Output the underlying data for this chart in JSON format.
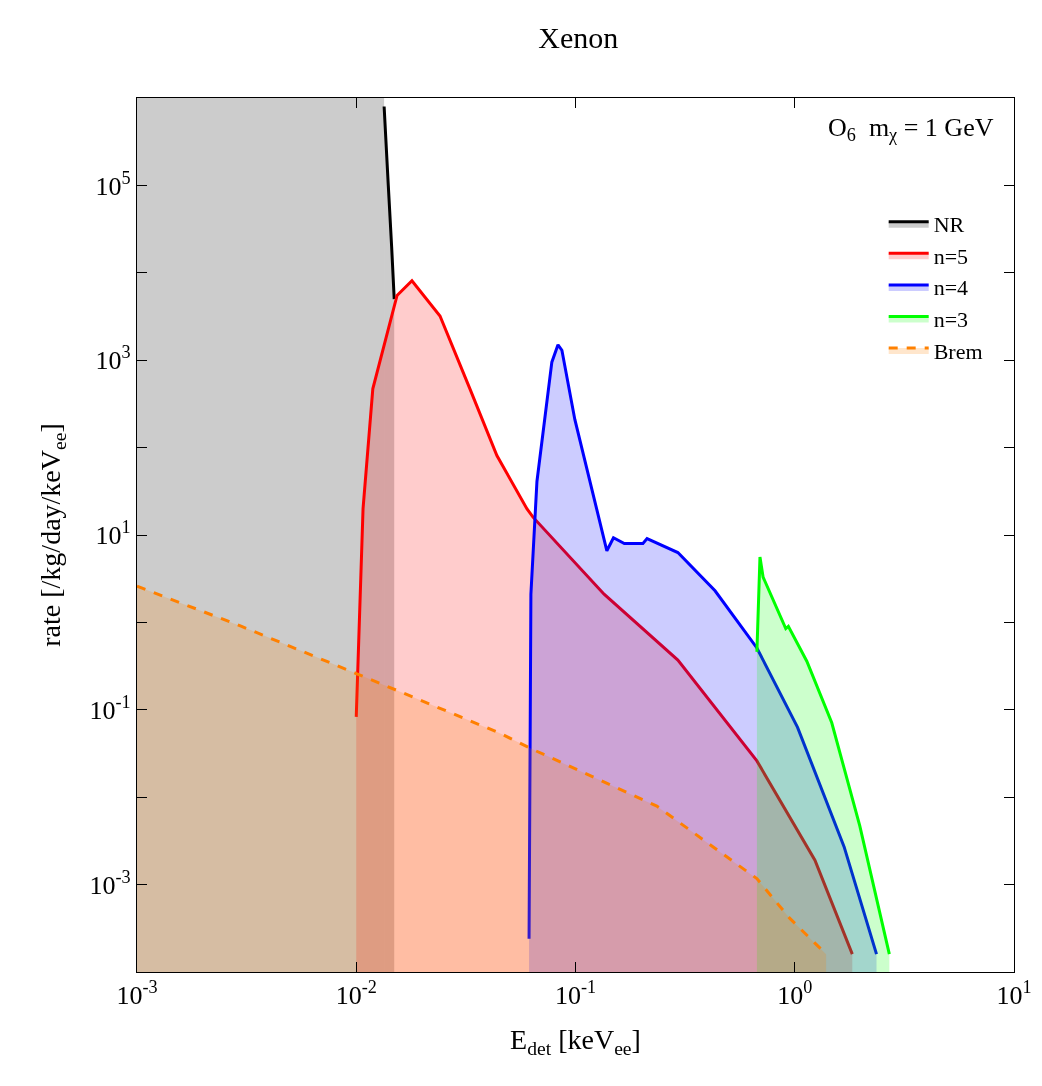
{
  "chart_data": {
    "type": "area",
    "title": "Xenon",
    "xlabel": "E$_{det}$ [keV$_{ee}$]",
    "ylabel": "rate [/kg/day/keV$_{ee}$]",
    "annotations": [
      "O$_{6}$  m$_{χ}$ = 1 GeV"
    ],
    "log": "xy",
    "xlim": [
      0.001,
      10
    ],
    "ylim": [
      0.0001,
      1000000
    ],
    "xticks": [
      {
        "value": 0.001,
        "label": "10$^{-3}$"
      },
      {
        "value": 0.01,
        "label": "10$^{-2}$"
      },
      {
        "value": 0.1,
        "label": "10$^{-1}$"
      },
      {
        "value": 1,
        "label": "10$^{0}$"
      },
      {
        "value": 10,
        "label": "10$^{1}$"
      }
    ],
    "yticks": [
      {
        "value": 0.001,
        "label": "10$^{-3}$"
      },
      {
        "value": 0.01,
        "label": null
      },
      {
        "value": 0.1,
        "label": "10$^{-1}$"
      },
      {
        "value": 1,
        "label": null
      },
      {
        "value": 10,
        "label": "10$^{1}$"
      },
      {
        "value": 100,
        "label": null
      },
      {
        "value": 1000,
        "label": "10$^{3}$"
      },
      {
        "value": 10000,
        "label": null
      },
      {
        "value": 100000,
        "label": "10$^{5}$"
      }
    ],
    "bands": [
      {
        "axis": "x",
        "from": 0.001,
        "to": 0.0134,
        "color": "#cccccc"
      }
    ],
    "grid": false,
    "legend": "top right",
    "line_style": "solid",
    "series": [
      {
        "name": "NR",
        "color": "#000000",
        "x": [
          0.0134,
          0.014,
          0.0145,
          0.0149
        ],
        "values": [
          800000,
          100000,
          20000,
          5000
        ]
      },
      {
        "name": "n=5",
        "color": "#ff0000",
        "x": [
          0.01,
          0.01074,
          0.0119,
          0.01535,
          0.01795,
          0.0241,
          0.033,
          0.0438,
          0.06,
          0.064,
          0.135,
          0.293,
          0.672,
          1.236,
          1.83
        ],
        "values": [
          0.083,
          20,
          470,
          5500,
          8100,
          3200,
          470,
          81,
          20,
          16,
          2.1,
          0.37,
          0.026,
          0.0019,
          0.00016
        ]
      },
      {
        "name": "n=4",
        "color": "#0000ff",
        "x": [
          0.0614,
          0.0626,
          0.0667,
          0.078,
          0.0832,
          0.0867,
          0.0993,
          0.139,
          0.149,
          0.167,
          0.203,
          0.212,
          0.293,
          0.433,
          0.672,
          1.03,
          1.68,
          2.36
        ],
        "values": [
          0.00024,
          2.1,
          41,
          950,
          1500,
          1300,
          210,
          6.6,
          9.3,
          8.0,
          8.0,
          9.1,
          6.3,
          2.3,
          0.51,
          0.063,
          0.0027,
          0.00016
        ]
      },
      {
        "name": "n=3",
        "color": "#00ff00",
        "x": [
          0.672,
          0.694,
          0.717,
          0.91,
          0.935,
          1.135,
          1.475,
          1.98,
          2.7
        ],
        "values": [
          0.46,
          5.6,
          3.3,
          0.85,
          0.9,
          0.36,
          0.071,
          0.0047,
          0.00016
        ]
      },
      {
        "name": "Brem",
        "color": "#ff8000",
        "line_style": "dashed",
        "x": [
          0.001,
          0.003,
          0.01,
          0.0452,
          0.0626,
          0.235,
          0.672,
          0.95,
          1.39
        ],
        "values": [
          2.6,
          0.9,
          0.26,
          0.054,
          0.036,
          0.0079,
          0.00117,
          0.00041,
          0.00016
        ]
      }
    ]
  }
}
